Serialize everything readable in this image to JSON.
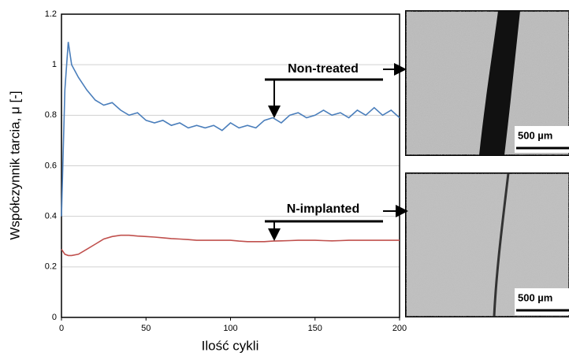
{
  "chart_data": {
    "type": "line",
    "y_label": "Współczynnik tarcia, μ [-]",
    "x_label": "Ilość cykli",
    "x": [
      0,
      2,
      4,
      6,
      10,
      15,
      20,
      25,
      30,
      35,
      40,
      45,
      50,
      55,
      60,
      65,
      70,
      75,
      80,
      85,
      90,
      95,
      100,
      105,
      110,
      115,
      120,
      125,
      130,
      135,
      140,
      145,
      150,
      155,
      160,
      165,
      170,
      175,
      180,
      185,
      190,
      195,
      200
    ],
    "series": [
      {
        "name": "Non-treated",
        "color": "#4a7ebb",
        "values": [
          0.4,
          0.9,
          1.09,
          1.0,
          0.95,
          0.9,
          0.86,
          0.84,
          0.85,
          0.82,
          0.8,
          0.81,
          0.78,
          0.77,
          0.78,
          0.76,
          0.77,
          0.75,
          0.76,
          0.75,
          0.76,
          0.74,
          0.77,
          0.75,
          0.76,
          0.75,
          0.78,
          0.79,
          0.77,
          0.8,
          0.81,
          0.79,
          0.8,
          0.82,
          0.8,
          0.81,
          0.79,
          0.82,
          0.8,
          0.83,
          0.8,
          0.82,
          0.79
        ]
      },
      {
        "name": "N-implanted",
        "color": "#c0504d",
        "values": [
          0.27,
          0.25,
          0.245,
          0.245,
          0.25,
          0.27,
          0.29,
          0.31,
          0.32,
          0.325,
          0.325,
          0.322,
          0.32,
          0.318,
          0.315,
          0.312,
          0.31,
          0.308,
          0.305,
          0.305,
          0.305,
          0.305,
          0.305,
          0.302,
          0.3,
          0.3,
          0.3,
          0.302,
          0.303,
          0.304,
          0.305,
          0.305,
          0.305,
          0.304,
          0.303,
          0.304,
          0.305,
          0.305,
          0.305,
          0.305,
          0.305,
          0.305,
          0.305
        ]
      }
    ],
    "xlim": [
      0,
      200
    ],
    "xticks": [
      0,
      50,
      100,
      150,
      200
    ],
    "ylim": [
      0,
      1.2
    ],
    "yticks": [
      0,
      0.2,
      0.4,
      0.6,
      0.8,
      1,
      1.2
    ],
    "grid": true,
    "scale_bar_labels": [
      "500 µm",
      "500 µm"
    ]
  }
}
